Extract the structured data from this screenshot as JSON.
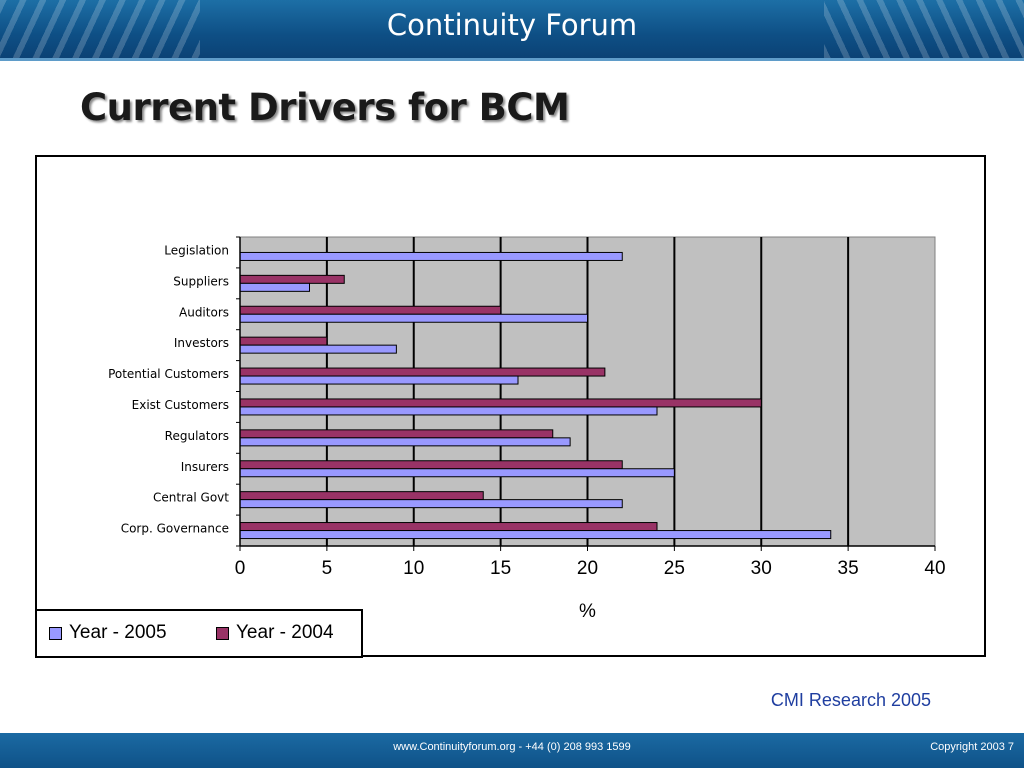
{
  "header": {
    "brand": "Continuity Forum"
  },
  "slide": {
    "title": "Current Drivers for BCM"
  },
  "chart_data": {
    "type": "bar",
    "orientation": "horizontal",
    "categories": [
      "Legislation",
      "Suppliers",
      "Auditors",
      "Investors",
      "Potential Customers",
      "Exist Customers",
      "Regulators",
      "Insurers",
      "Central Govt",
      "Corp. Governance"
    ],
    "series": [
      {
        "name": "Year  - 2005",
        "color": "#9999ff",
        "values": [
          22,
          4,
          20,
          9,
          16,
          24,
          19,
          25,
          22,
          34
        ]
      },
      {
        "name": "Year  - 2004",
        "color": "#993366",
        "values": [
          null,
          6,
          15,
          5,
          21,
          30,
          18,
          22,
          14,
          24
        ]
      }
    ],
    "xlim": [
      0,
      40
    ],
    "xticks": [
      "0",
      "5",
      "10",
      "15",
      "20",
      "25",
      "30",
      "35",
      "40"
    ],
    "xlabel": "%",
    "ylabel": "",
    "grid": "vertical",
    "plot_background": "#c0c0c0",
    "legend_placement": "bottom-left"
  },
  "source_note": "CMI Research 2005",
  "footer": {
    "contact": "www.Continuityforum.org - +44 (0) 208 993 1599",
    "copyright": "Copyright 2003  7"
  }
}
